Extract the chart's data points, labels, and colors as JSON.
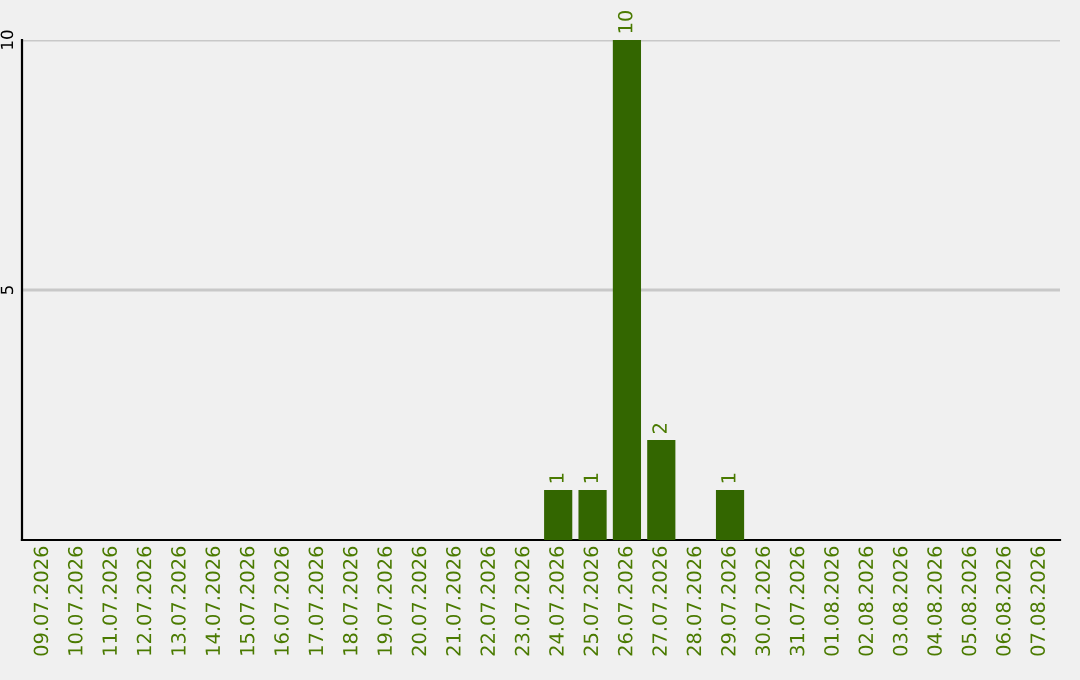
{
  "chart_data": {
    "type": "bar",
    "categories": [
      "09.07.2026",
      "10.07.2026",
      "11.07.2026",
      "12.07.2026",
      "13.07.2026",
      "14.07.2026",
      "15.07.2026",
      "16.07.2026",
      "17.07.2026",
      "18.07.2026",
      "19.07.2026",
      "20.07.2026",
      "21.07.2026",
      "22.07.2026",
      "23.07.2026",
      "24.07.2026",
      "25.07.2026",
      "26.07.2026",
      "27.07.2026",
      "28.07.2026",
      "29.07.2026",
      "30.07.2026",
      "31.07.2026",
      "01.08.2026",
      "02.08.2026",
      "03.08.2026",
      "04.08.2026",
      "05.08.2026",
      "06.08.2026",
      "07.08.2026"
    ],
    "values": [
      0,
      0,
      0,
      0,
      0,
      0,
      0,
      0,
      0,
      0,
      0,
      0,
      0,
      0,
      0,
      1,
      1,
      10,
      2,
      0,
      1,
      0,
      0,
      0,
      0,
      0,
      0,
      0,
      0,
      0
    ],
    "value_labels": [
      null,
      null,
      null,
      null,
      null,
      null,
      null,
      null,
      null,
      null,
      null,
      null,
      null,
      null,
      null,
      "1",
      "1",
      "10",
      "2",
      null,
      "1",
      null,
      null,
      null,
      null,
      null,
      null,
      null,
      null,
      null
    ],
    "color": "#336600",
    "ylim": [
      0,
      10
    ],
    "yticks": [
      5,
      10
    ],
    "grid": "y"
  }
}
